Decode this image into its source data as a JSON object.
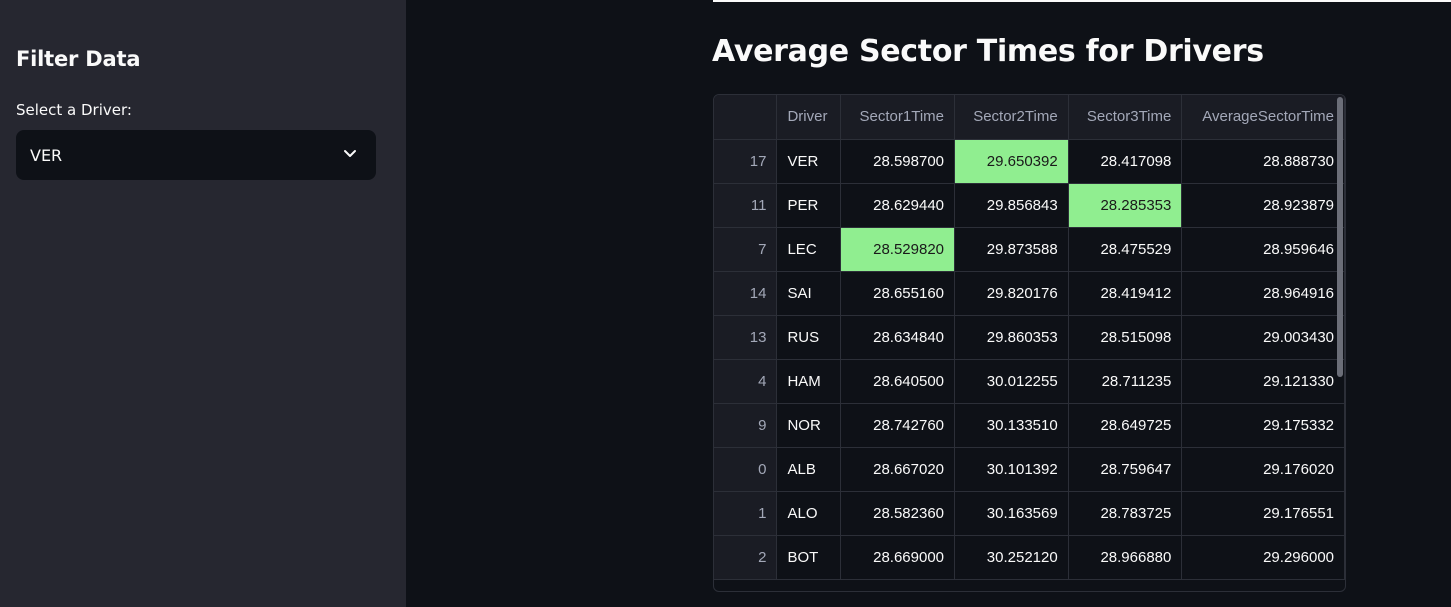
{
  "sidebar": {
    "heading": "Filter Data",
    "select_label": "Select a Driver:",
    "selected_driver": "VER"
  },
  "main": {
    "title": "Average Sector Times for Drivers"
  },
  "table": {
    "columns": [
      "",
      "Driver",
      "Sector1Time",
      "Sector2Time",
      "Sector3Time",
      "AverageSectorTime"
    ],
    "highlight_color": "#90ee90",
    "rows": [
      {
        "index": "17",
        "driver": "VER",
        "s1": "28.598700",
        "s2": "29.650392",
        "s3": "28.417098",
        "avg": "28.888730",
        "hl": "s2"
      },
      {
        "index": "11",
        "driver": "PER",
        "s1": "28.629440",
        "s2": "29.856843",
        "s3": "28.285353",
        "avg": "28.923879",
        "hl": "s3"
      },
      {
        "index": "7",
        "driver": "LEC",
        "s1": "28.529820",
        "s2": "29.873588",
        "s3": "28.475529",
        "avg": "28.959646",
        "hl": "s1"
      },
      {
        "index": "14",
        "driver": "SAI",
        "s1": "28.655160",
        "s2": "29.820176",
        "s3": "28.419412",
        "avg": "28.964916",
        "hl": ""
      },
      {
        "index": "13",
        "driver": "RUS",
        "s1": "28.634840",
        "s2": "29.860353",
        "s3": "28.515098",
        "avg": "29.003430",
        "hl": ""
      },
      {
        "index": "4",
        "driver": "HAM",
        "s1": "28.640500",
        "s2": "30.012255",
        "s3": "28.711235",
        "avg": "29.121330",
        "hl": ""
      },
      {
        "index": "9",
        "driver": "NOR",
        "s1": "28.742760",
        "s2": "30.133510",
        "s3": "28.649725",
        "avg": "29.175332",
        "hl": ""
      },
      {
        "index": "0",
        "driver": "ALB",
        "s1": "28.667020",
        "s2": "30.101392",
        "s3": "28.759647",
        "avg": "29.176020",
        "hl": ""
      },
      {
        "index": "1",
        "driver": "ALO",
        "s1": "28.582360",
        "s2": "30.163569",
        "s3": "28.783725",
        "avg": "29.176551",
        "hl": ""
      },
      {
        "index": "2",
        "driver": "BOT",
        "s1": "28.669000",
        "s2": "30.252120",
        "s3": "28.966880",
        "avg": "29.296000",
        "hl": ""
      }
    ]
  }
}
